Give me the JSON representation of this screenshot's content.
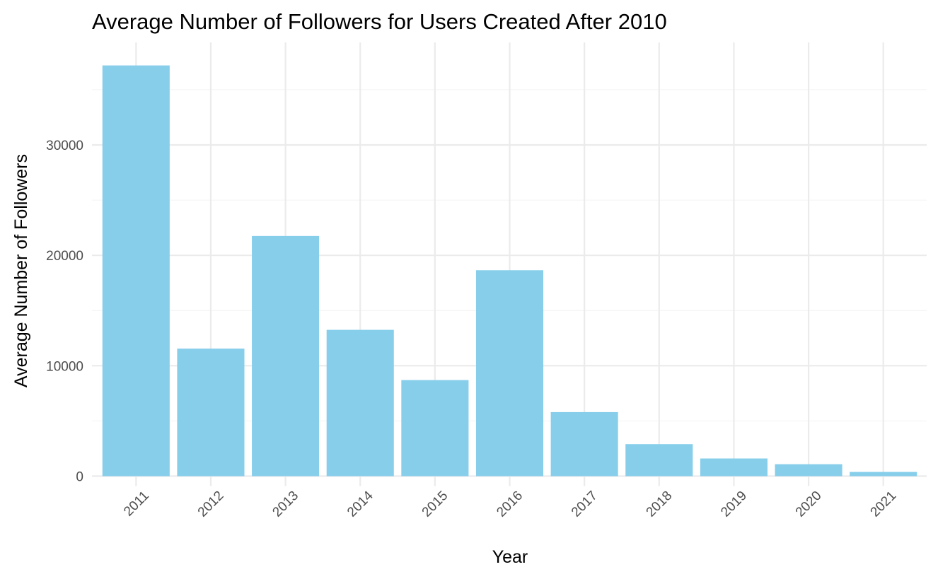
{
  "chart_data": {
    "type": "bar",
    "title": "Average Number of Followers for Users Created After 2010",
    "xlabel": "Year",
    "ylabel": "Average Number of Followers",
    "categories": [
      "2011",
      "2012",
      "2013",
      "2014",
      "2015",
      "2016",
      "2017",
      "2018",
      "2019",
      "2020",
      "2021"
    ],
    "values": [
      37200,
      11550,
      21750,
      13250,
      8700,
      18650,
      5800,
      2900,
      1600,
      1080,
      380
    ],
    "ylim": [
      0,
      38000
    ],
    "y_ticks": [
      0,
      10000,
      20000,
      30000
    ],
    "y_tick_labels": [
      "0",
      "10000",
      "20000",
      "30000"
    ],
    "grid": true,
    "legend": "none",
    "colors": {
      "bar": "#87CEEB",
      "grid_major": "#ebebeb",
      "grid_minor": "#f4f4f4",
      "tick_text": "#4d4d4d",
      "text": "#000000"
    }
  }
}
